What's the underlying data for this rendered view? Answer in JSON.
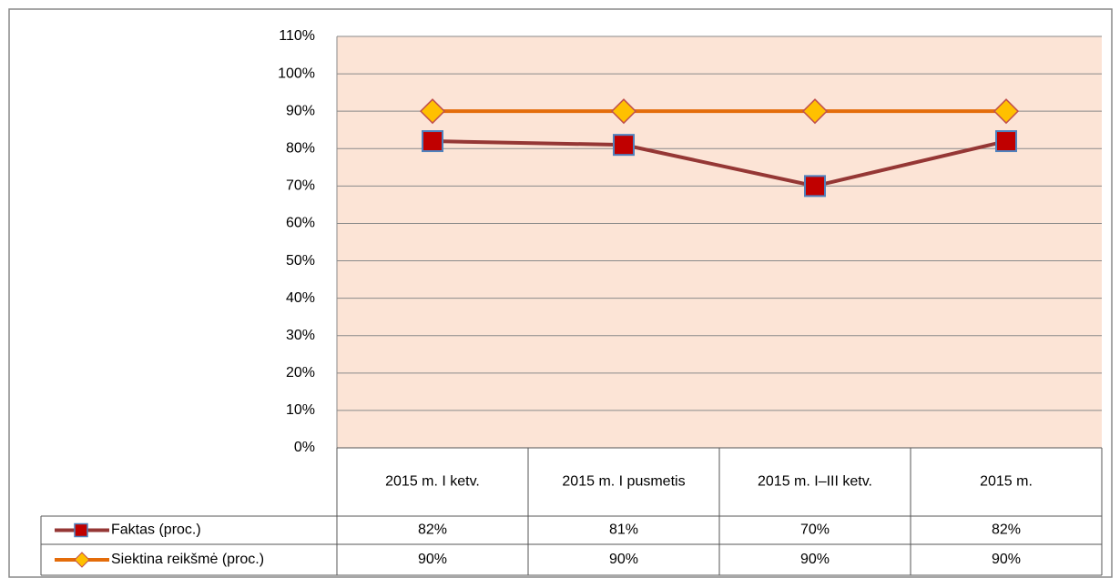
{
  "chart_data": {
    "type": "line",
    "categories": [
      "2015 m. I ketv.",
      "2015 m. I pusmetis",
      "2015 m. I–III ketv.",
      "2015 m."
    ],
    "series": [
      {
        "name": "Faktas (proc.)",
        "color": "#953735",
        "marker_color": "#c00000",
        "values": [
          82,
          81,
          70,
          82
        ],
        "value_labels": [
          "82%",
          "81%",
          "70%",
          "82%"
        ]
      },
      {
        "name": "Siektina reikšmė (proc.)",
        "color": "#e46c0a",
        "marker_color": "#ffc000",
        "values": [
          90,
          90,
          90,
          90
        ],
        "value_labels": [
          "90%",
          "90%",
          "90%",
          "90%"
        ]
      }
    ],
    "ylim": [
      0,
      110
    ],
    "yticks": [
      {
        "value": 0,
        "label": "0%"
      },
      {
        "value": 10,
        "label": "10%"
      },
      {
        "value": 20,
        "label": "20%"
      },
      {
        "value": 30,
        "label": "30%"
      },
      {
        "value": 40,
        "label": "40%"
      },
      {
        "value": 50,
        "label": "50%"
      },
      {
        "value": 60,
        "label": "60%"
      },
      {
        "value": 70,
        "label": "70%"
      },
      {
        "value": 80,
        "label": "80%"
      },
      {
        "value": 90,
        "label": "90%"
      },
      {
        "value": 100,
        "label": "100%"
      },
      {
        "value": 110,
        "label": "110%"
      }
    ],
    "grid": true,
    "plot_background": "#fce4d6"
  }
}
